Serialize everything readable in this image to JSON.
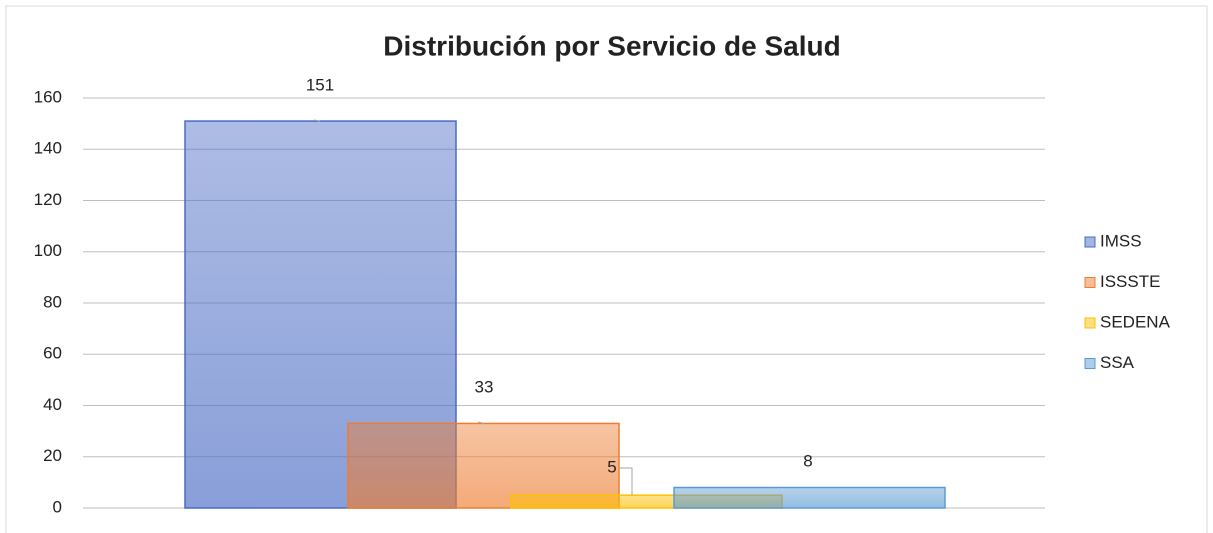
{
  "chart_data": {
    "type": "bar",
    "title": "Distribución por Servicio de Salud",
    "series": [
      {
        "name": "IMSS",
        "color": "#4a6bc4",
        "values": [
          151
        ]
      },
      {
        "name": "ISSSTE",
        "color": "#ed7d31",
        "values": [
          33
        ]
      },
      {
        "name": "SEDENA",
        "color": "#ffc000",
        "values": [
          5
        ]
      },
      {
        "name": "SSA",
        "color": "#5b9bd5",
        "values": [
          8
        ]
      }
    ],
    "ylim": [
      0,
      160
    ],
    "yticks": [
      0,
      20,
      40,
      60,
      80,
      100,
      120,
      140,
      160
    ],
    "grid": true,
    "legend": "right"
  }
}
